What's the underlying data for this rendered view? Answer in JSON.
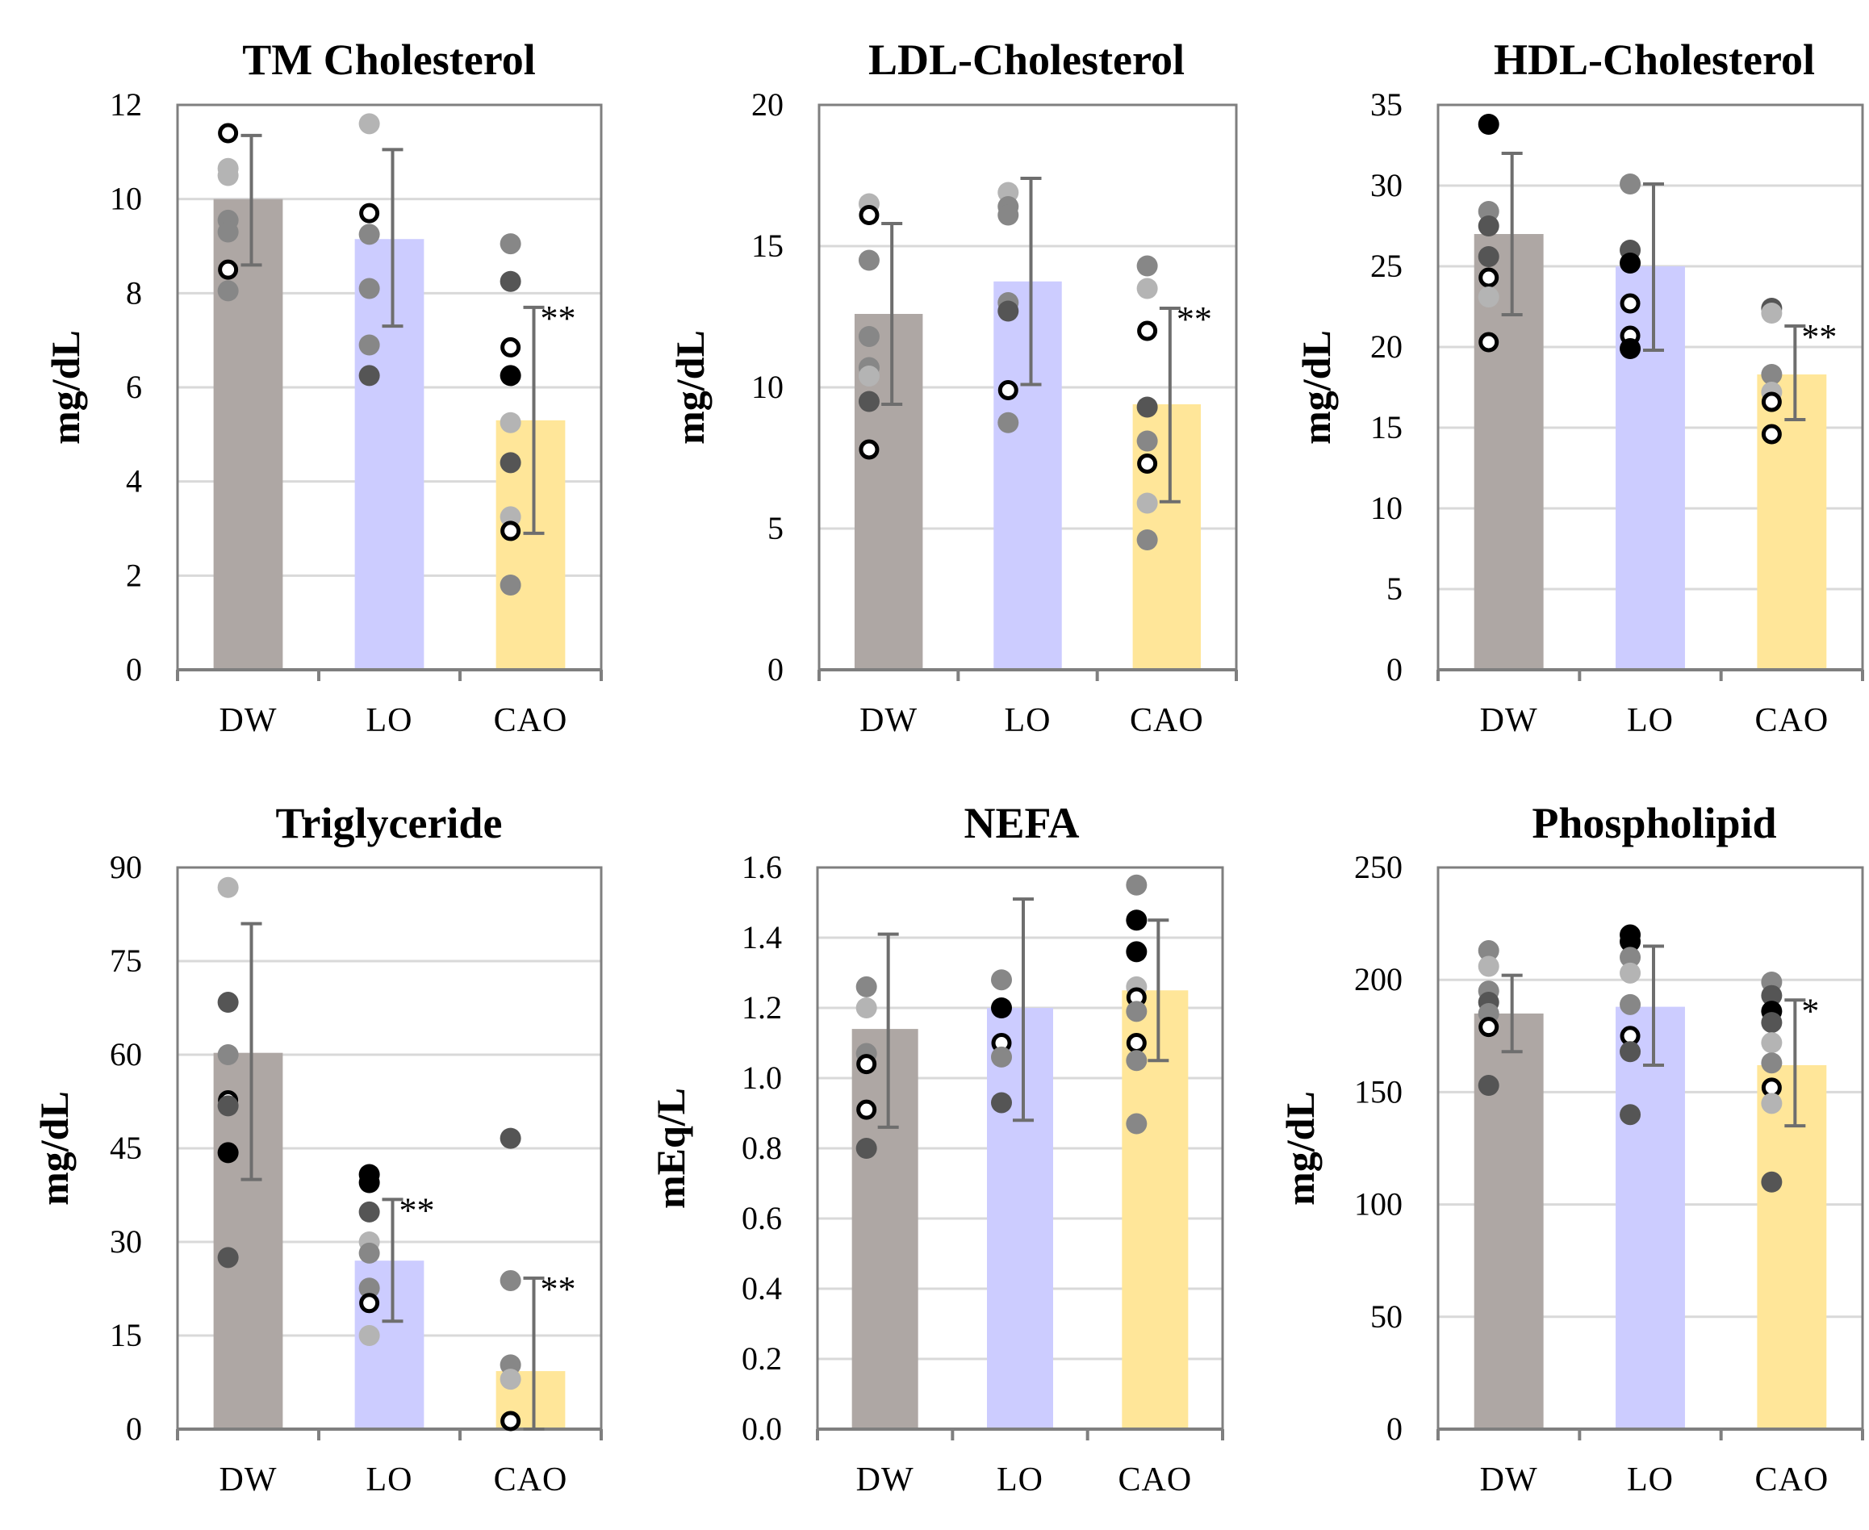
{
  "figure": {
    "categories": [
      "DW",
      "LO",
      "CAO"
    ],
    "bar_colors": [
      "#aea7a4",
      "#ccccff",
      "#ffe699"
    ]
  },
  "chart_data": [
    {
      "type": "bar",
      "title": "TM Cholesterol",
      "ylabel": "mg/dL",
      "categories": [
        "DW",
        "LO",
        "CAO"
      ],
      "ylim": [
        0,
        12
      ],
      "yticks": [
        "0",
        "2",
        "4",
        "6",
        "8",
        "10",
        "12"
      ],
      "values": [
        10.0,
        9.15,
        5.3
      ],
      "error_hi": [
        11.35,
        11.05,
        7.7
      ],
      "error_lo": [
        8.6,
        7.3,
        2.9
      ],
      "significance": [
        "",
        "",
        "**"
      ],
      "points": [
        [
          {
            "v": 11.4,
            "s": "open"
          },
          {
            "v": 10.65,
            "s": "light"
          },
          {
            "v": 10.5,
            "s": "light"
          },
          {
            "v": 9.55,
            "s": "mid"
          },
          {
            "v": 9.3,
            "s": "mid"
          },
          {
            "v": 8.5,
            "s": "open"
          },
          {
            "v": 8.05,
            "s": "mid"
          }
        ],
        [
          {
            "v": 11.6,
            "s": "light"
          },
          {
            "v": 9.7,
            "s": "open"
          },
          {
            "v": 9.25,
            "s": "mid"
          },
          {
            "v": 8.1,
            "s": "mid"
          },
          {
            "v": 6.9,
            "s": "mid"
          },
          {
            "v": 6.25,
            "s": "dark"
          }
        ],
        [
          {
            "v": 9.05,
            "s": "mid"
          },
          {
            "v": 8.25,
            "s": "dark"
          },
          {
            "v": 6.85,
            "s": "open"
          },
          {
            "v": 6.25,
            "s": "black"
          },
          {
            "v": 5.25,
            "s": "light"
          },
          {
            "v": 4.4,
            "s": "dark"
          },
          {
            "v": 3.25,
            "s": "light"
          },
          {
            "v": 2.95,
            "s": "open"
          },
          {
            "v": 1.8,
            "s": "mid"
          }
        ]
      ]
    },
    {
      "type": "bar",
      "title": "LDL-Cholesterol",
      "ylabel": "mg/dL",
      "categories": [
        "DW",
        "LO",
        "CAO"
      ],
      "ylim": [
        0,
        20
      ],
      "yticks": [
        "0",
        "5",
        "10",
        "15",
        "20"
      ],
      "values": [
        12.6,
        13.75,
        9.4
      ],
      "error_hi": [
        15.8,
        17.4,
        12.8
      ],
      "error_lo": [
        9.4,
        10.1,
        5.95
      ],
      "significance": [
        "",
        "",
        "**"
      ],
      "points": [
        [
          {
            "v": 16.5,
            "s": "light"
          },
          {
            "v": 16.1,
            "s": "open"
          },
          {
            "v": 14.5,
            "s": "mid"
          },
          {
            "v": 11.8,
            "s": "mid"
          },
          {
            "v": 10.7,
            "s": "mid"
          },
          {
            "v": 10.4,
            "s": "light"
          },
          {
            "v": 9.5,
            "s": "dark"
          },
          {
            "v": 7.8,
            "s": "open"
          }
        ],
        [
          {
            "v": 16.9,
            "s": "light"
          },
          {
            "v": 16.4,
            "s": "mid"
          },
          {
            "v": 16.1,
            "s": "mid"
          },
          {
            "v": 13.0,
            "s": "mid"
          },
          {
            "v": 12.7,
            "s": "dark"
          },
          {
            "v": 9.9,
            "s": "open"
          },
          {
            "v": 8.75,
            "s": "mid"
          }
        ],
        [
          {
            "v": 14.3,
            "s": "mid"
          },
          {
            "v": 13.5,
            "s": "light"
          },
          {
            "v": 12.0,
            "s": "open"
          },
          {
            "v": 9.3,
            "s": "dark"
          },
          {
            "v": 8.1,
            "s": "mid"
          },
          {
            "v": 7.3,
            "s": "open"
          },
          {
            "v": 5.9,
            "s": "light"
          },
          {
            "v": 4.6,
            "s": "mid"
          }
        ]
      ]
    },
    {
      "type": "bar",
      "title": "HDL-Cholesterol",
      "ylabel": "mg/dL",
      "categories": [
        "DW",
        "LO",
        "CAO"
      ],
      "ylim": [
        0,
        35
      ],
      "yticks": [
        "0",
        "5",
        "10",
        "15",
        "20",
        "25",
        "30",
        "35"
      ],
      "values": [
        27.0,
        25.0,
        18.3
      ],
      "error_hi": [
        32.0,
        30.1,
        21.3
      ],
      "error_lo": [
        22.0,
        19.8,
        15.5
      ],
      "significance": [
        "",
        "",
        "**"
      ],
      "points": [
        [
          {
            "v": 33.8,
            "s": "black"
          },
          {
            "v": 28.4,
            "s": "mid"
          },
          {
            "v": 27.5,
            "s": "dark"
          },
          {
            "v": 25.6,
            "s": "dark"
          },
          {
            "v": 24.3,
            "s": "open"
          },
          {
            "v": 23.1,
            "s": "light"
          },
          {
            "v": 20.3,
            "s": "open"
          }
        ],
        [
          {
            "v": 30.1,
            "s": "mid"
          },
          {
            "v": 26.0,
            "s": "dark"
          },
          {
            "v": 25.2,
            "s": "black"
          },
          {
            "v": 22.7,
            "s": "open"
          },
          {
            "v": 20.7,
            "s": "open"
          },
          {
            "v": 19.9,
            "s": "black"
          }
        ],
        [
          {
            "v": 22.4,
            "s": "dark"
          },
          {
            "v": 22.1,
            "s": "light"
          },
          {
            "v": 18.3,
            "s": "mid"
          },
          {
            "v": 17.2,
            "s": "light"
          },
          {
            "v": 16.6,
            "s": "open"
          },
          {
            "v": 14.6,
            "s": "open"
          }
        ]
      ]
    },
    {
      "type": "bar",
      "title": "Triglyceride",
      "ylabel": "mg/dL",
      "categories": [
        "DW",
        "LO",
        "CAO"
      ],
      "ylim": [
        0,
        90
      ],
      "yticks": [
        "0",
        "15",
        "30",
        "45",
        "60",
        "75",
        "90"
      ],
      "values": [
        60.3,
        27.0,
        9.3
      ],
      "error_hi": [
        81.0,
        36.8,
        24.2
      ],
      "error_lo": [
        40.0,
        17.3,
        0.0
      ],
      "significance": [
        "",
        "**",
        "**"
      ],
      "points": [
        [
          {
            "v": 86.8,
            "s": "light"
          },
          {
            "v": 68.4,
            "s": "dark"
          },
          {
            "v": 60.0,
            "s": "mid"
          },
          {
            "v": 52.7,
            "s": "open"
          },
          {
            "v": 51.8,
            "s": "dark"
          },
          {
            "v": 44.3,
            "s": "black"
          },
          {
            "v": 27.5,
            "s": "dark"
          }
        ],
        [
          {
            "v": 40.8,
            "s": "black"
          },
          {
            "v": 39.5,
            "s": "black"
          },
          {
            "v": 34.8,
            "s": "dark"
          },
          {
            "v": 30.0,
            "s": "light"
          },
          {
            "v": 28.2,
            "s": "mid"
          },
          {
            "v": 22.6,
            "s": "mid"
          },
          {
            "v": 20.2,
            "s": "open"
          },
          {
            "v": 15.0,
            "s": "light"
          }
        ],
        [
          {
            "v": 46.6,
            "s": "dark"
          },
          {
            "v": 23.8,
            "s": "mid"
          },
          {
            "v": 10.3,
            "s": "mid"
          },
          {
            "v": 8.0,
            "s": "light"
          },
          {
            "v": 1.3,
            "s": "open"
          }
        ]
      ]
    },
    {
      "type": "bar",
      "title": "NEFA",
      "ylabel": "mEq/L",
      "categories": [
        "DW",
        "LO",
        "CAO"
      ],
      "ylim": [
        0,
        1.6
      ],
      "yticks": [
        "0.0",
        "0.2",
        "0.4",
        "0.6",
        "0.8",
        "1.0",
        "1.2",
        "1.4",
        "1.6"
      ],
      "values": [
        1.14,
        1.2,
        1.25
      ],
      "error_hi": [
        1.41,
        1.51,
        1.45
      ],
      "error_lo": [
        0.86,
        0.88,
        1.05
      ],
      "significance": [
        "",
        "",
        ""
      ],
      "points": [
        [
          {
            "v": 1.26,
            "s": "mid"
          },
          {
            "v": 1.2,
            "s": "light"
          },
          {
            "v": 1.07,
            "s": "mid"
          },
          {
            "v": 1.04,
            "s": "open"
          },
          {
            "v": 0.91,
            "s": "open"
          },
          {
            "v": 0.8,
            "s": "dark"
          }
        ],
        [
          {
            "v": 1.28,
            "s": "mid"
          },
          {
            "v": 1.2,
            "s": "black"
          },
          {
            "v": 1.1,
            "s": "open"
          },
          {
            "v": 1.06,
            "s": "mid"
          },
          {
            "v": 0.93,
            "s": "dark"
          }
        ],
        [
          {
            "v": 1.55,
            "s": "mid"
          },
          {
            "v": 1.45,
            "s": "black"
          },
          {
            "v": 1.36,
            "s": "black"
          },
          {
            "v": 1.26,
            "s": "light"
          },
          {
            "v": 1.23,
            "s": "open"
          },
          {
            "v": 1.19,
            "s": "mid"
          },
          {
            "v": 1.1,
            "s": "open"
          },
          {
            "v": 1.05,
            "s": "mid"
          },
          {
            "v": 0.87,
            "s": "mid"
          }
        ]
      ]
    },
    {
      "type": "bar",
      "title": "Phospholipid",
      "ylabel": "mg/dL",
      "categories": [
        "DW",
        "LO",
        "CAO"
      ],
      "ylim": [
        0,
        250
      ],
      "yticks": [
        "0",
        "50",
        "100",
        "150",
        "200",
        "250"
      ],
      "values": [
        185,
        188,
        162
      ],
      "error_hi": [
        202,
        215,
        191
      ],
      "error_lo": [
        168,
        162,
        135
      ],
      "significance": [
        "",
        "",
        "*"
      ],
      "points": [
        [
          {
            "v": 213,
            "s": "mid"
          },
          {
            "v": 206,
            "s": "light"
          },
          {
            "v": 195,
            "s": "mid"
          },
          {
            "v": 190,
            "s": "dark"
          },
          {
            "v": 185,
            "s": "mid"
          },
          {
            "v": 179,
            "s": "open"
          },
          {
            "v": 153,
            "s": "dark"
          }
        ],
        [
          {
            "v": 220,
            "s": "black"
          },
          {
            "v": 217,
            "s": "black"
          },
          {
            "v": 210,
            "s": "mid"
          },
          {
            "v": 203,
            "s": "light"
          },
          {
            "v": 189,
            "s": "mid"
          },
          {
            "v": 175,
            "s": "open"
          },
          {
            "v": 168,
            "s": "dark"
          },
          {
            "v": 140,
            "s": "dark"
          }
        ],
        [
          {
            "v": 199,
            "s": "mid"
          },
          {
            "v": 193,
            "s": "dark"
          },
          {
            "v": 186,
            "s": "black"
          },
          {
            "v": 181,
            "s": "dark"
          },
          {
            "v": 172,
            "s": "light"
          },
          {
            "v": 163,
            "s": "mid"
          },
          {
            "v": 152,
            "s": "open"
          },
          {
            "v": 145,
            "s": "light"
          },
          {
            "v": 110,
            "s": "dark"
          }
        ]
      ]
    }
  ]
}
